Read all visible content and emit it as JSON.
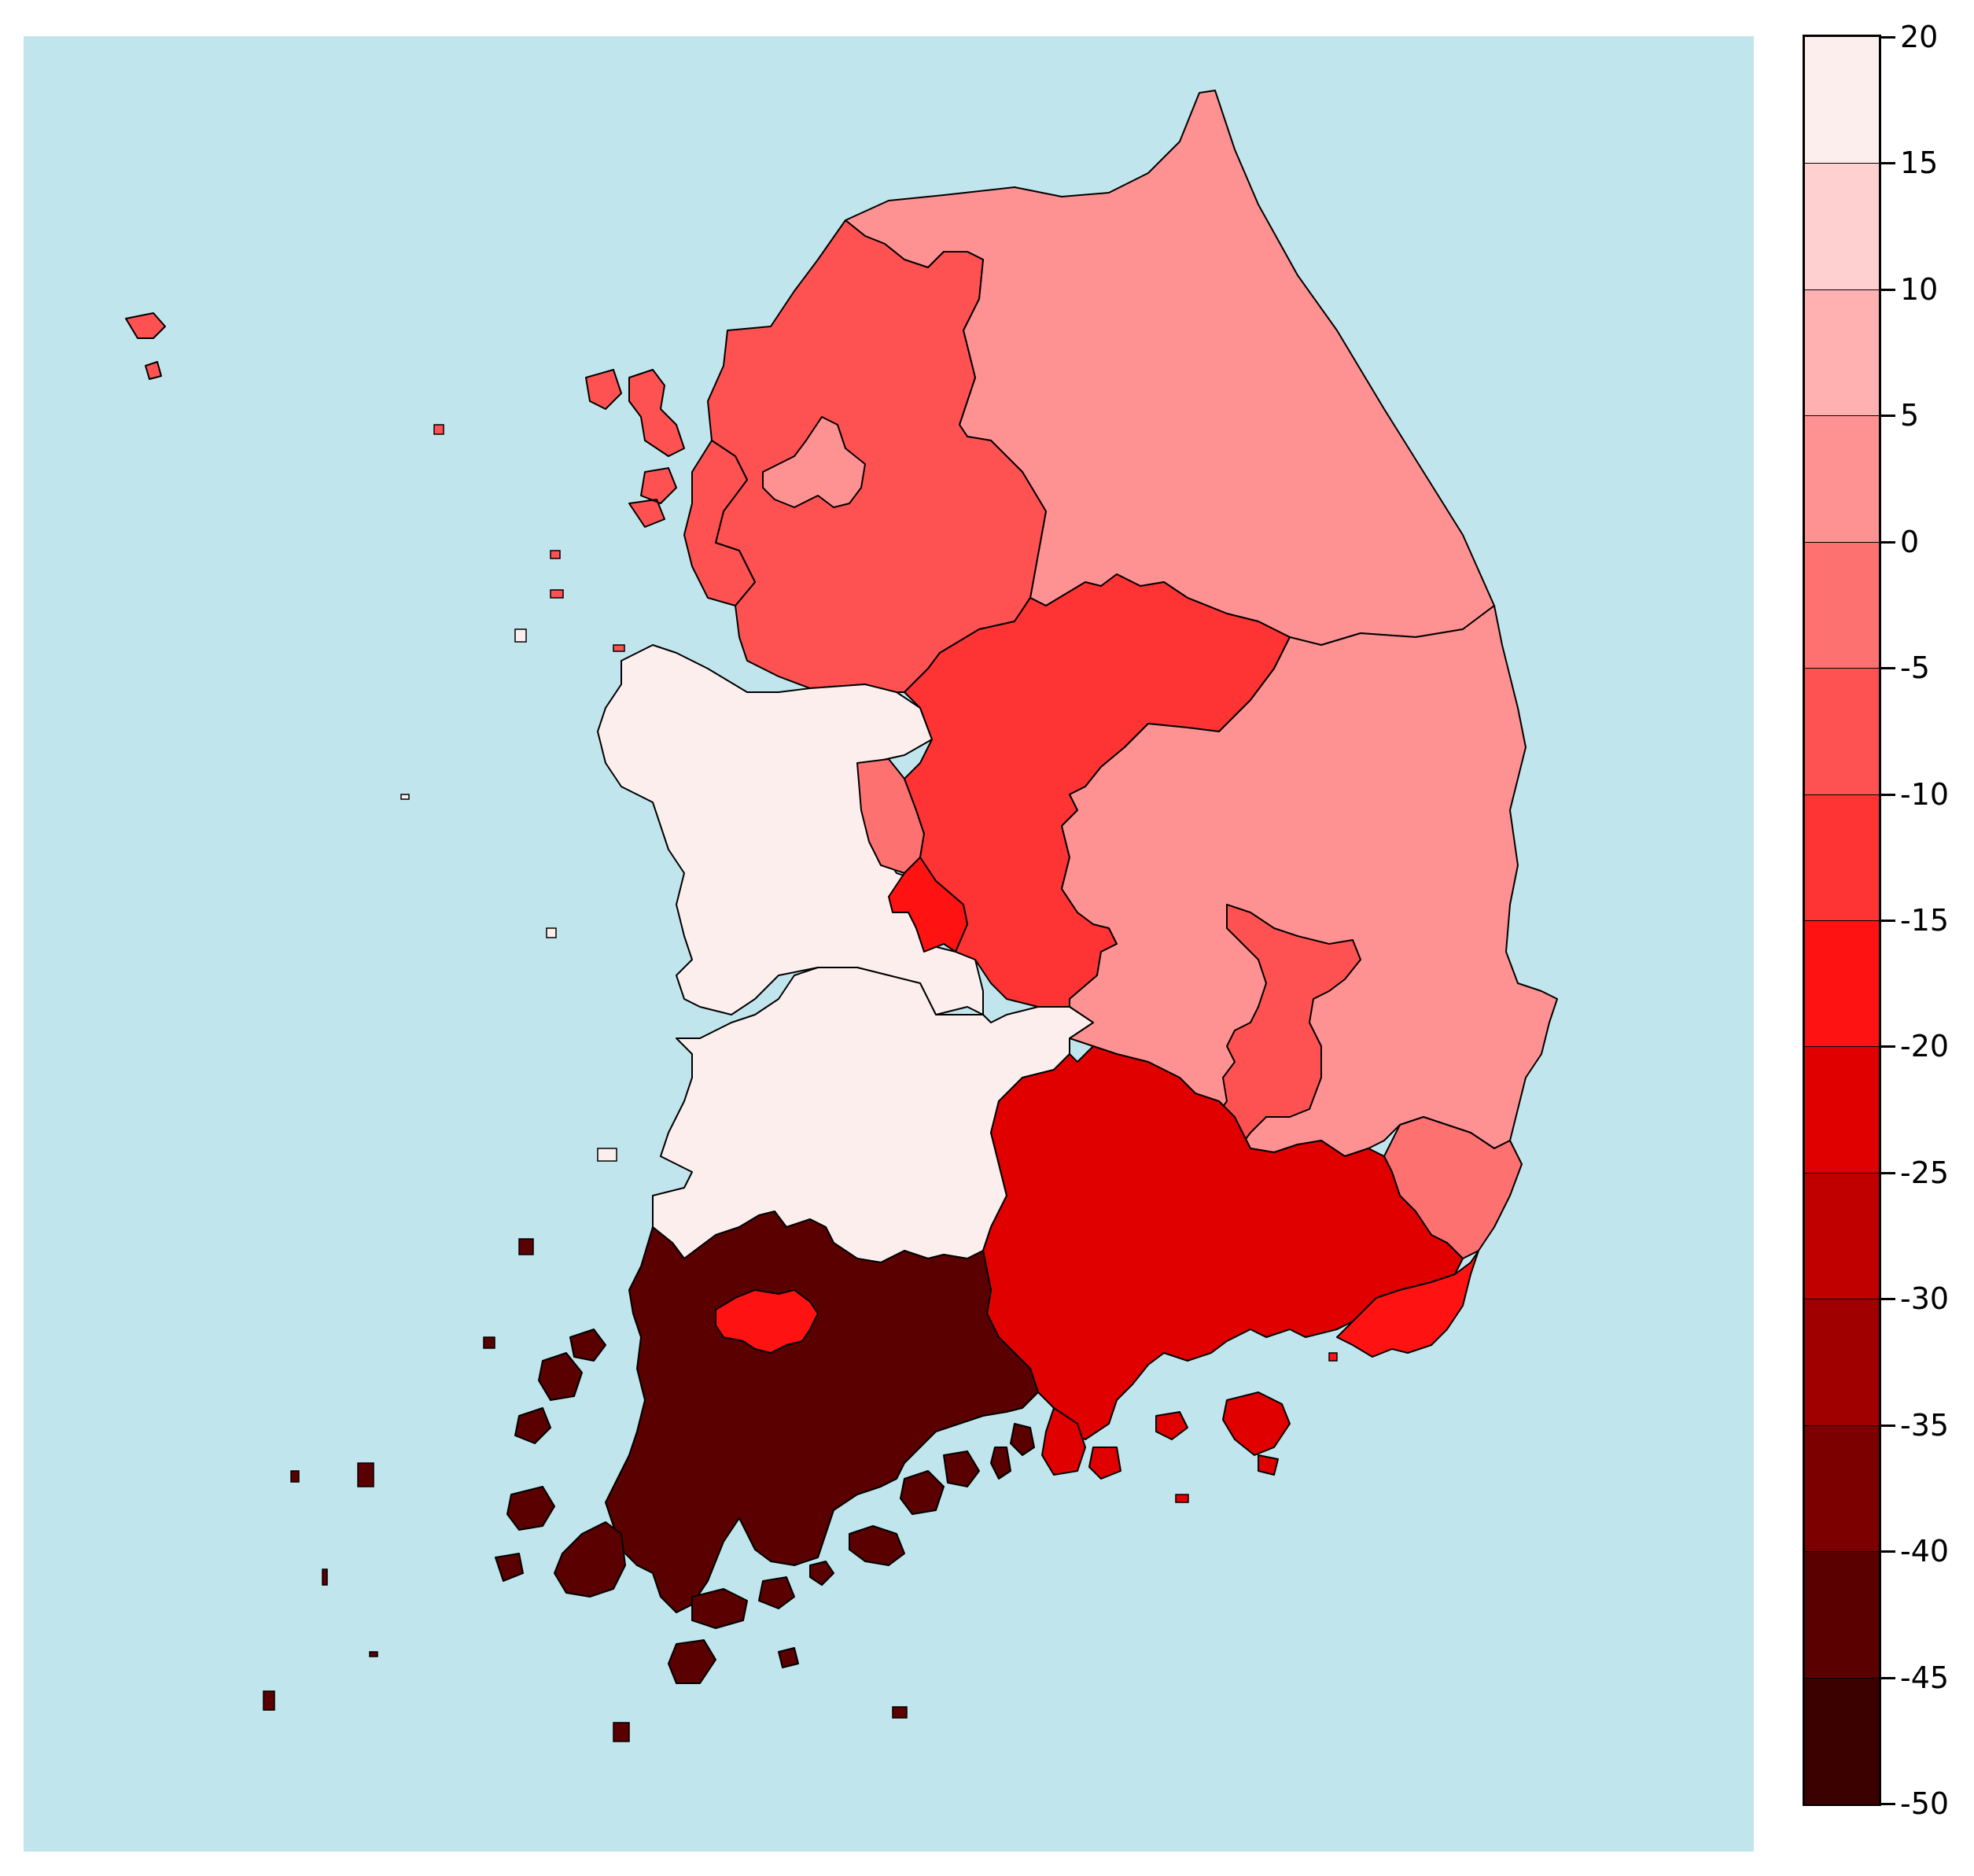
{
  "map": {
    "sea_color": "#c1e5ec",
    "border_color": "#000000",
    "regions": [
      {
        "name": "Gangwon",
        "value": 2,
        "color": "#fe9292"
      },
      {
        "name": "Gyeonggi",
        "value": -7,
        "color": "#fe5252"
      },
      {
        "name": "Seoul",
        "value": 3,
        "color": "#fe9292"
      },
      {
        "name": "Incheon",
        "value": -7,
        "color": "#fe5252"
      },
      {
        "name": "Chungnam",
        "value": 18,
        "color": "#fdeeee"
      },
      {
        "name": "Sejong",
        "value": -3,
        "color": "#fe7171"
      },
      {
        "name": "Chungbuk",
        "value": -12,
        "color": "#fe3333"
      },
      {
        "name": "Daejeon",
        "value": -17,
        "color": "#fe1212"
      },
      {
        "name": "Gyeongbuk",
        "value": 2,
        "color": "#fe9292"
      },
      {
        "name": "Daegu",
        "value": -7,
        "color": "#fe5252"
      },
      {
        "name": "Ulsan",
        "value": -3,
        "color": "#fe7171"
      },
      {
        "name": "Jeonbuk",
        "value": 18,
        "color": "#fdeeee"
      },
      {
        "name": "Gyeongnam",
        "value": -22,
        "color": "#e00000"
      },
      {
        "name": "Busan",
        "value": -17,
        "color": "#fe1212"
      },
      {
        "name": "Jeonnam",
        "value": -42,
        "color": "#5a0000"
      },
      {
        "name": "Gwangju",
        "value": -17,
        "color": "#fe1212"
      }
    ]
  },
  "colorbar": {
    "min": -50,
    "max": 20,
    "tick_labels": [
      "20",
      "15",
      "10",
      "5",
      "0",
      "-5",
      "-10",
      "-15",
      "-20",
      "-25",
      "-30",
      "-35",
      "-40",
      "-45",
      "-50"
    ],
    "band_colors": [
      "#fdeeee",
      "#ffd0d0",
      "#ffb1b1",
      "#fe9292",
      "#fe7171",
      "#fe5252",
      "#fe3333",
      "#fe1212",
      "#e00000",
      "#c00000",
      "#a00000",
      "#7c0000",
      "#5a0000",
      "#3b0000"
    ]
  }
}
